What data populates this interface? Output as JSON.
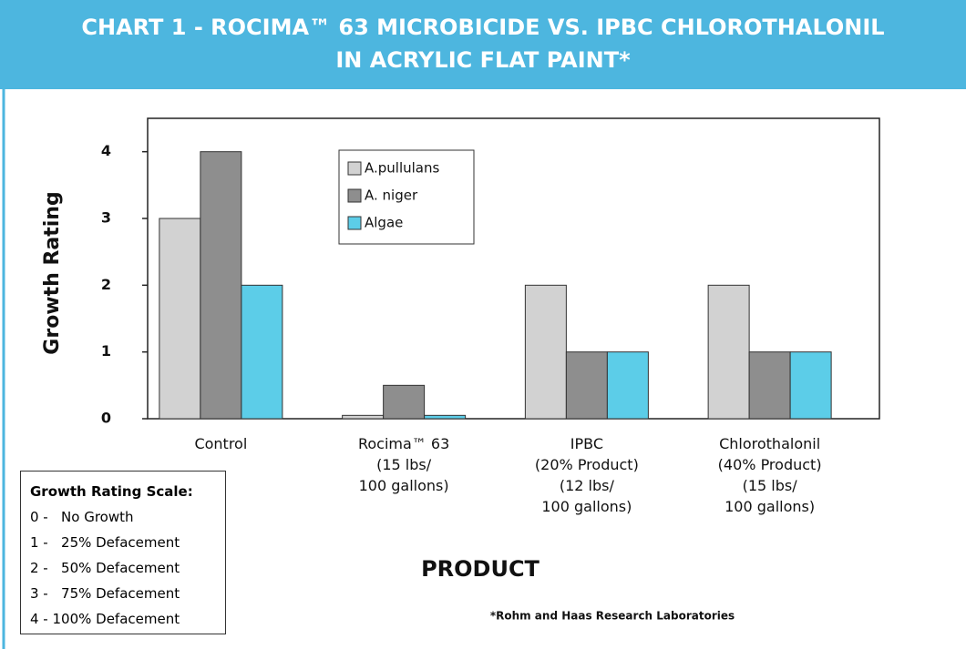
{
  "chart_data": {
    "type": "bar",
    "title": "CHART 1 - ROCIMA™ 63 MICROBICIDE VS. IPBC CHLOROTHALONIL\nIN ACRYLIC FLAT PAINT*",
    "y_label": "Growth Rating",
    "x_label": "PRODUCT",
    "categories": [
      "Control",
      "Rocima™ 63\n(15 lbs/\n100 gallons)",
      "IPBC\n(20% Product)\n(12 lbs/\n100 gallons)",
      "Chlorothalonil\n(40% Product)\n(15 lbs/\n100 gallons)"
    ],
    "series": [
      {
        "name": "A.pullulans",
        "color": "#d2d2d2",
        "values": [
          3,
          0.05,
          2,
          2
        ]
      },
      {
        "name": "A. niger",
        "color": "#8e8e8e",
        "values": [
          4,
          0.5,
          1,
          1
        ]
      },
      {
        "name": "Algae",
        "color": "#5ccde8",
        "values": [
          2,
          0.05,
          1,
          1
        ]
      }
    ],
    "ylim": [
      0,
      4.5
    ],
    "yticks": [
      0,
      1,
      2,
      3,
      4
    ],
    "grid": false,
    "scale_title": "Growth Rating Scale:",
    "scale_items": [
      "0 -   No Growth",
      "1 -   25% Defacement",
      "2 -   50% Defacement",
      "3 -   75% Defacement",
      "4 - 100% Defacement"
    ],
    "note": "*Rohm and Haas Research Laboratories"
  }
}
